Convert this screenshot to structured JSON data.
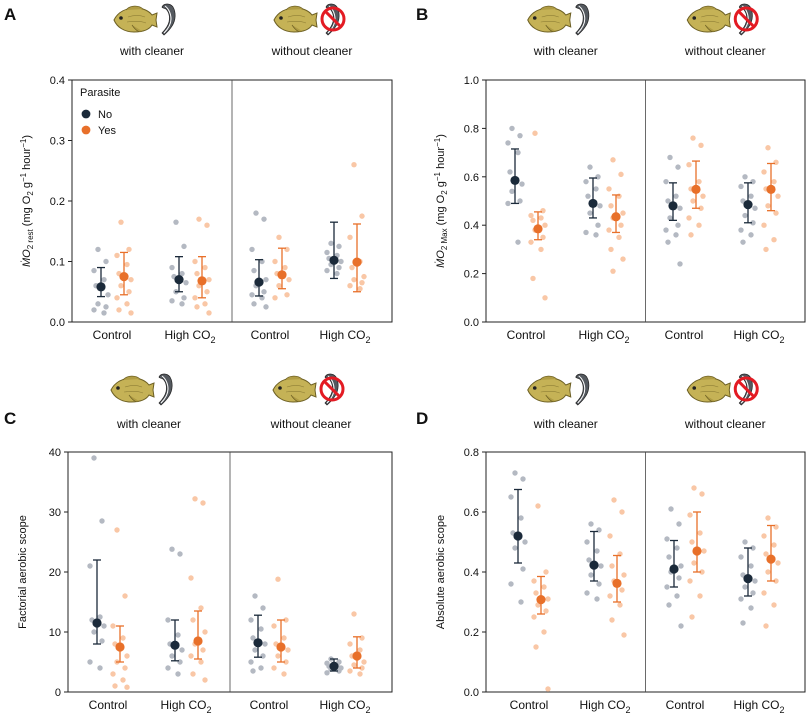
{
  "colors": {
    "no": "#1b2a3a",
    "yes": "#e8702a",
    "no_light": "#b4b9c2",
    "yes_light": "#f9c7a6"
  },
  "icons": {
    "fish": "fish-icon",
    "cleaner": "cleaner-wrasse-icon",
    "no_cleaner": "no-cleaner-prohibition-icon"
  },
  "headers": {
    "with": "with cleaner",
    "without": "without cleaner"
  },
  "legend": {
    "title": "Parasite",
    "no": "No",
    "yes": "Yes"
  },
  "cat_labels": {
    "control": "Control",
    "high_co2_prefix": "High CO",
    "high_co2_sub": "2"
  },
  "chart_data": [
    {
      "type": "scatter",
      "panel": "A",
      "ylabel": {
        "pre": "ṀO",
        "sub1": "2 rest",
        "mid": " (mg O",
        "sub2": "2",
        "mid2": " g",
        "sup1": "−1",
        "mid3": " hour",
        "sup2": "−1",
        "post": ")"
      },
      "ylim": [
        0,
        0.4
      ],
      "yticks": [
        "0.0",
        "0.1",
        "0.2",
        "0.3",
        "0.4"
      ],
      "legend": true,
      "groups": [
        {
          "mean": 0.058,
          "lo": 0.042,
          "hi": 0.09,
          "pts": [
            0.12,
            0.1,
            0.085,
            0.07,
            0.06,
            0.045,
            0.03,
            0.025,
            0.02,
            0.015
          ]
        },
        {
          "mean": 0.075,
          "lo": 0.045,
          "hi": 0.115,
          "pts": [
            0.165,
            0.12,
            0.11,
            0.095,
            0.08,
            0.07,
            0.06,
            0.05,
            0.04,
            0.03,
            0.02,
            0.015
          ]
        },
        {
          "mean": 0.07,
          "lo": 0.05,
          "hi": 0.108,
          "pts": [
            0.165,
            0.125,
            0.09,
            0.08,
            0.075,
            0.065,
            0.05,
            0.04,
            0.035,
            0.03
          ]
        },
        {
          "mean": 0.068,
          "lo": 0.04,
          "hi": 0.108,
          "pts": [
            0.17,
            0.16,
            0.1,
            0.09,
            0.08,
            0.07,
            0.06,
            0.05,
            0.04,
            0.03,
            0.025,
            0.015
          ]
        },
        {
          "mean": 0.066,
          "lo": 0.043,
          "hi": 0.103,
          "pts": [
            0.18,
            0.17,
            0.12,
            0.1,
            0.085,
            0.07,
            0.06,
            0.05,
            0.045,
            0.04,
            0.03,
            0.025
          ]
        },
        {
          "mean": 0.078,
          "lo": 0.055,
          "hi": 0.122,
          "pts": [
            0.14,
            0.12,
            0.1,
            0.09,
            0.08,
            0.07,
            0.06,
            0.045,
            0.04
          ]
        },
        {
          "mean": 0.102,
          "lo": 0.072,
          "hi": 0.165,
          "pts": [
            0.13,
            0.125,
            0.115,
            0.11,
            0.105,
            0.1,
            0.095,
            0.09,
            0.085,
            0.08
          ]
        },
        {
          "mean": 0.099,
          "lo": 0.05,
          "hi": 0.162,
          "pts": [
            0.26,
            0.175,
            0.14,
            0.1,
            0.09,
            0.075,
            0.07,
            0.065,
            0.06,
            0.055
          ]
        }
      ]
    },
    {
      "type": "scatter",
      "panel": "B",
      "ylabel": {
        "pre": "ṀO",
        "sub1": "2 Max",
        "mid": " (mg O",
        "sub2": "2",
        "mid2": " g",
        "sup1": "−1",
        "mid3": " hour",
        "sup2": "−1",
        "post": ")"
      },
      "ylim": [
        0,
        1.0
      ],
      "yticks": [
        "0.0",
        "0.2",
        "0.4",
        "0.6",
        "0.8",
        "1.0"
      ],
      "legend": false,
      "groups": [
        {
          "mean": 0.585,
          "lo": 0.49,
          "hi": 0.715,
          "pts": [
            0.8,
            0.77,
            0.74,
            0.7,
            0.62,
            0.57,
            0.54,
            0.5,
            0.49,
            0.33
          ]
        },
        {
          "mean": 0.385,
          "lo": 0.34,
          "hi": 0.455,
          "pts": [
            0.78,
            0.46,
            0.44,
            0.43,
            0.42,
            0.4,
            0.38,
            0.35,
            0.33,
            0.3,
            0.18,
            0.1
          ]
        },
        {
          "mean": 0.49,
          "lo": 0.43,
          "hi": 0.595,
          "pts": [
            0.64,
            0.6,
            0.58,
            0.55,
            0.52,
            0.48,
            0.45,
            0.4,
            0.37,
            0.36
          ]
        },
        {
          "mean": 0.435,
          "lo": 0.37,
          "hi": 0.525,
          "pts": [
            0.67,
            0.61,
            0.55,
            0.52,
            0.48,
            0.45,
            0.43,
            0.4,
            0.38,
            0.35,
            0.3,
            0.26,
            0.21
          ]
        },
        {
          "mean": 0.48,
          "lo": 0.42,
          "hi": 0.575,
          "pts": [
            0.68,
            0.64,
            0.58,
            0.52,
            0.5,
            0.47,
            0.43,
            0.4,
            0.38,
            0.36,
            0.33,
            0.24
          ]
        },
        {
          "mean": 0.548,
          "lo": 0.47,
          "hi": 0.665,
          "pts": [
            0.76,
            0.73,
            0.65,
            0.58,
            0.55,
            0.52,
            0.5,
            0.47,
            0.43,
            0.4,
            0.36
          ]
        },
        {
          "mean": 0.485,
          "lo": 0.41,
          "hi": 0.575,
          "pts": [
            0.6,
            0.58,
            0.56,
            0.52,
            0.5,
            0.47,
            0.44,
            0.41,
            0.38,
            0.36,
            0.33
          ]
        },
        {
          "mean": 0.548,
          "lo": 0.46,
          "hi": 0.655,
          "pts": [
            0.72,
            0.66,
            0.62,
            0.58,
            0.55,
            0.52,
            0.48,
            0.45,
            0.4,
            0.34,
            0.3
          ]
        }
      ]
    },
    {
      "type": "scatter",
      "panel": "C",
      "ylabel": {
        "pre": "Factorial aerobic scope"
      },
      "ylim": [
        0,
        40
      ],
      "yticks": [
        "0",
        "10",
        "20",
        "30",
        "40"
      ],
      "legend": false,
      "groups": [
        {
          "mean": 11.5,
          "lo": 8.0,
          "hi": 22.0,
          "pts": [
            39.0,
            28.5,
            21.0,
            12.5,
            12.0,
            11.0,
            10.0,
            8.5,
            5.0,
            4.0
          ]
        },
        {
          "mean": 7.5,
          "lo": 5.0,
          "hi": 11.0,
          "pts": [
            27.0,
            16.0,
            11.0,
            9.0,
            8.0,
            6.0,
            5.0,
            4.0,
            3.0,
            2.0,
            1.0,
            0.8
          ]
        },
        {
          "mean": 7.8,
          "lo": 5.2,
          "hi": 12.0,
          "pts": [
            23.8,
            23.0,
            12.0,
            9.5,
            8.0,
            7.0,
            6.0,
            5.0,
            4.0,
            3.0
          ]
        },
        {
          "mean": 8.5,
          "lo": 5.5,
          "hi": 13.5,
          "pts": [
            32.2,
            31.5,
            19.0,
            14.0,
            12.0,
            10.0,
            8.0,
            7.0,
            6.0,
            5.0,
            3.0,
            2.0
          ]
        },
        {
          "mean": 8.2,
          "lo": 5.8,
          "hi": 12.8,
          "pts": [
            16.0,
            14.0,
            12.0,
            10.5,
            9.0,
            8.0,
            7.0,
            6.0,
            5.0,
            4.0,
            3.5
          ]
        },
        {
          "mean": 7.5,
          "lo": 5.0,
          "hi": 12.0,
          "pts": [
            18.8,
            12.0,
            11.0,
            9.0,
            8.0,
            7.0,
            6.0,
            5.0,
            4.0,
            3.0
          ]
        },
        {
          "mean": 4.3,
          "lo": 3.5,
          "hi": 5.5,
          "pts": [
            5.5,
            5.0,
            4.8,
            4.5,
            4.3,
            4.0,
            3.8,
            3.5,
            3.2
          ]
        },
        {
          "mean": 6.0,
          "lo": 4.0,
          "hi": 9.2,
          "pts": [
            13.0,
            9.0,
            8.0,
            7.0,
            6.0,
            5.0,
            4.5,
            4.0,
            3.5,
            3.0
          ]
        }
      ]
    },
    {
      "type": "scatter",
      "panel": "D",
      "ylabel": {
        "pre": "Absolute aerobic scope"
      },
      "ylim": [
        0,
        0.8
      ],
      "yticks": [
        "0.0",
        "0.2",
        "0.4",
        "0.6",
        "0.8"
      ],
      "legend": false,
      "groups": [
        {
          "mean": 0.52,
          "lo": 0.43,
          "hi": 0.675,
          "pts": [
            0.73,
            0.71,
            0.65,
            0.58,
            0.53,
            0.5,
            0.48,
            0.41,
            0.36,
            0.3
          ]
        },
        {
          "mean": 0.308,
          "lo": 0.26,
          "hi": 0.385,
          "pts": [
            0.62,
            0.4,
            0.37,
            0.35,
            0.33,
            0.31,
            0.29,
            0.27,
            0.25,
            0.2,
            0.15,
            0.01
          ]
        },
        {
          "mean": 0.423,
          "lo": 0.37,
          "hi": 0.535,
          "pts": [
            0.56,
            0.54,
            0.5,
            0.47,
            0.44,
            0.42,
            0.39,
            0.36,
            0.33,
            0.31
          ]
        },
        {
          "mean": 0.362,
          "lo": 0.3,
          "hi": 0.455,
          "pts": [
            0.64,
            0.6,
            0.52,
            0.46,
            0.42,
            0.39,
            0.37,
            0.34,
            0.32,
            0.29,
            0.24,
            0.19
          ]
        },
        {
          "mean": 0.41,
          "lo": 0.35,
          "hi": 0.505,
          "pts": [
            0.61,
            0.56,
            0.51,
            0.48,
            0.45,
            0.42,
            0.4,
            0.38,
            0.35,
            0.32,
            0.29,
            0.22
          ]
        },
        {
          "mean": 0.47,
          "lo": 0.4,
          "hi": 0.6,
          "pts": [
            0.68,
            0.66,
            0.59,
            0.53,
            0.5,
            0.47,
            0.43,
            0.4,
            0.37,
            0.32,
            0.25
          ]
        },
        {
          "mean": 0.378,
          "lo": 0.32,
          "hi": 0.48,
          "pts": [
            0.5,
            0.48,
            0.45,
            0.42,
            0.39,
            0.37,
            0.35,
            0.33,
            0.31,
            0.28,
            0.23
          ]
        },
        {
          "mean": 0.443,
          "lo": 0.37,
          "hi": 0.555,
          "pts": [
            0.58,
            0.55,
            0.52,
            0.49,
            0.46,
            0.43,
            0.4,
            0.37,
            0.33,
            0.29,
            0.22
          ]
        }
      ]
    }
  ]
}
